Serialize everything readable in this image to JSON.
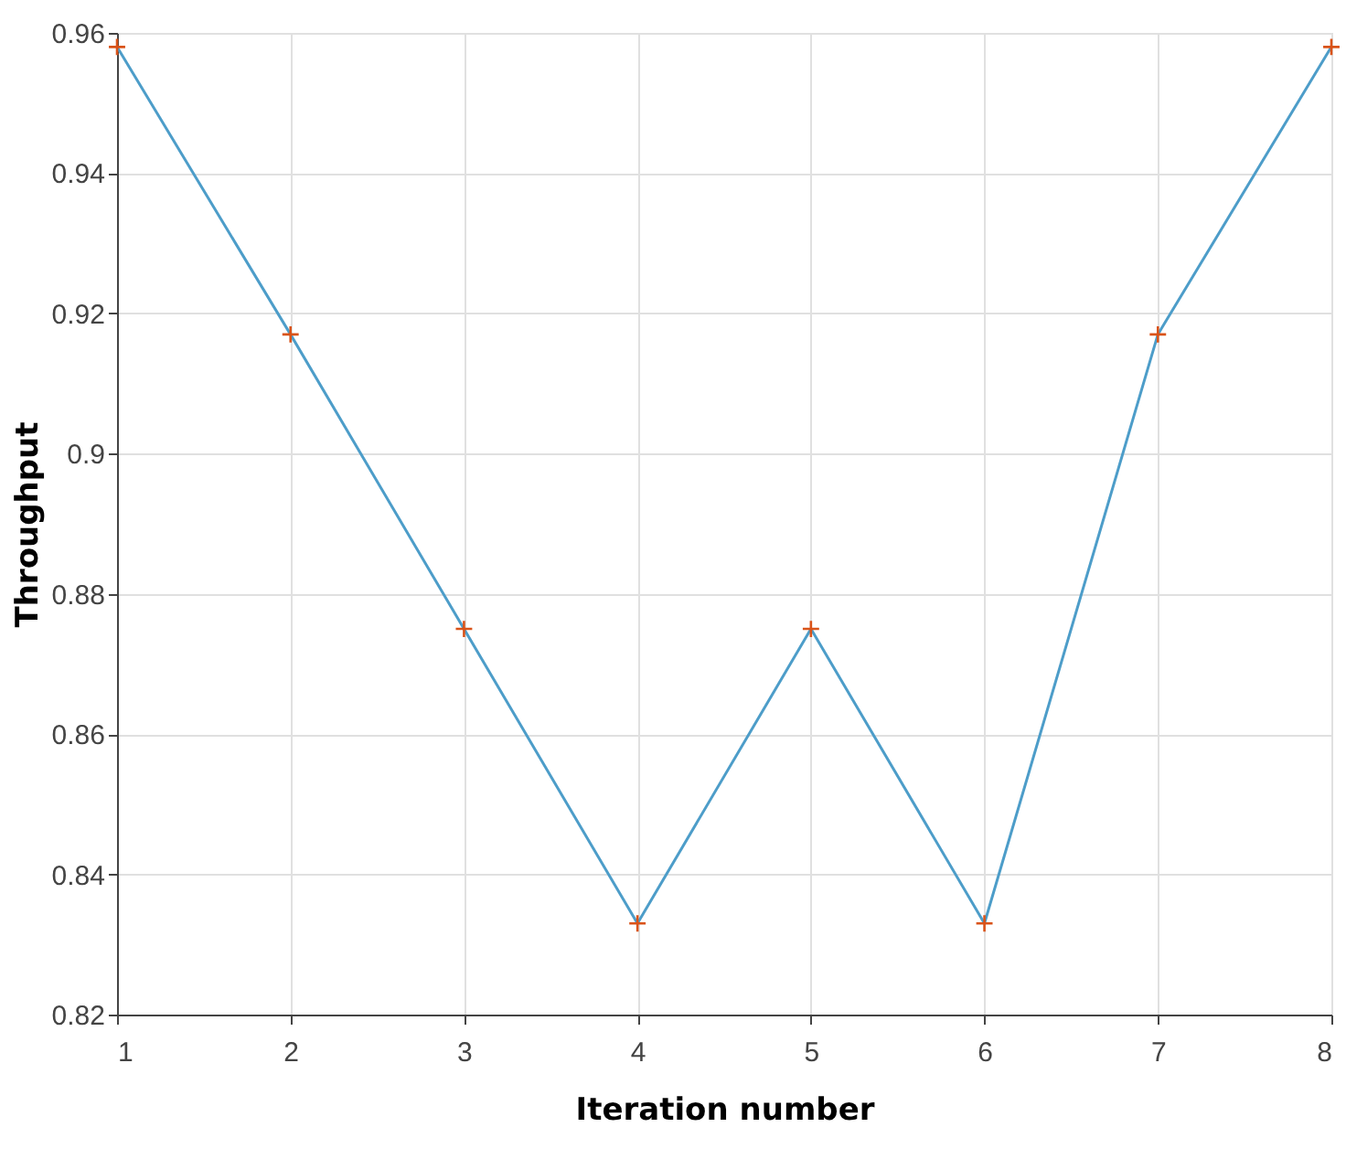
{
  "chart_data": {
    "type": "line",
    "xlabel": "Iteration number",
    "ylabel": "Throughput",
    "x": [
      1,
      2,
      3,
      4,
      5,
      6,
      7,
      8
    ],
    "series": [
      {
        "color": "#4d9dc9",
        "marker": "none",
        "values": [
          0.958,
          0.917,
          0.875,
          0.833,
          0.875,
          0.833,
          0.917,
          0.958
        ]
      },
      {
        "type": "scatter",
        "color": "#d95319",
        "marker": "cross",
        "values": [
          0.958,
          0.917,
          0.875,
          0.833,
          0.875,
          0.833,
          0.917,
          0.958
        ]
      }
    ],
    "xlim": [
      1,
      8
    ],
    "xticks": [
      1,
      2,
      3,
      4,
      5,
      6,
      7,
      8
    ],
    "ylim": [
      0.82,
      0.96
    ],
    "yticks": [
      0.82,
      0.84,
      0.86,
      0.88,
      0.9,
      0.92,
      0.94,
      0.96
    ],
    "grid": true
  }
}
